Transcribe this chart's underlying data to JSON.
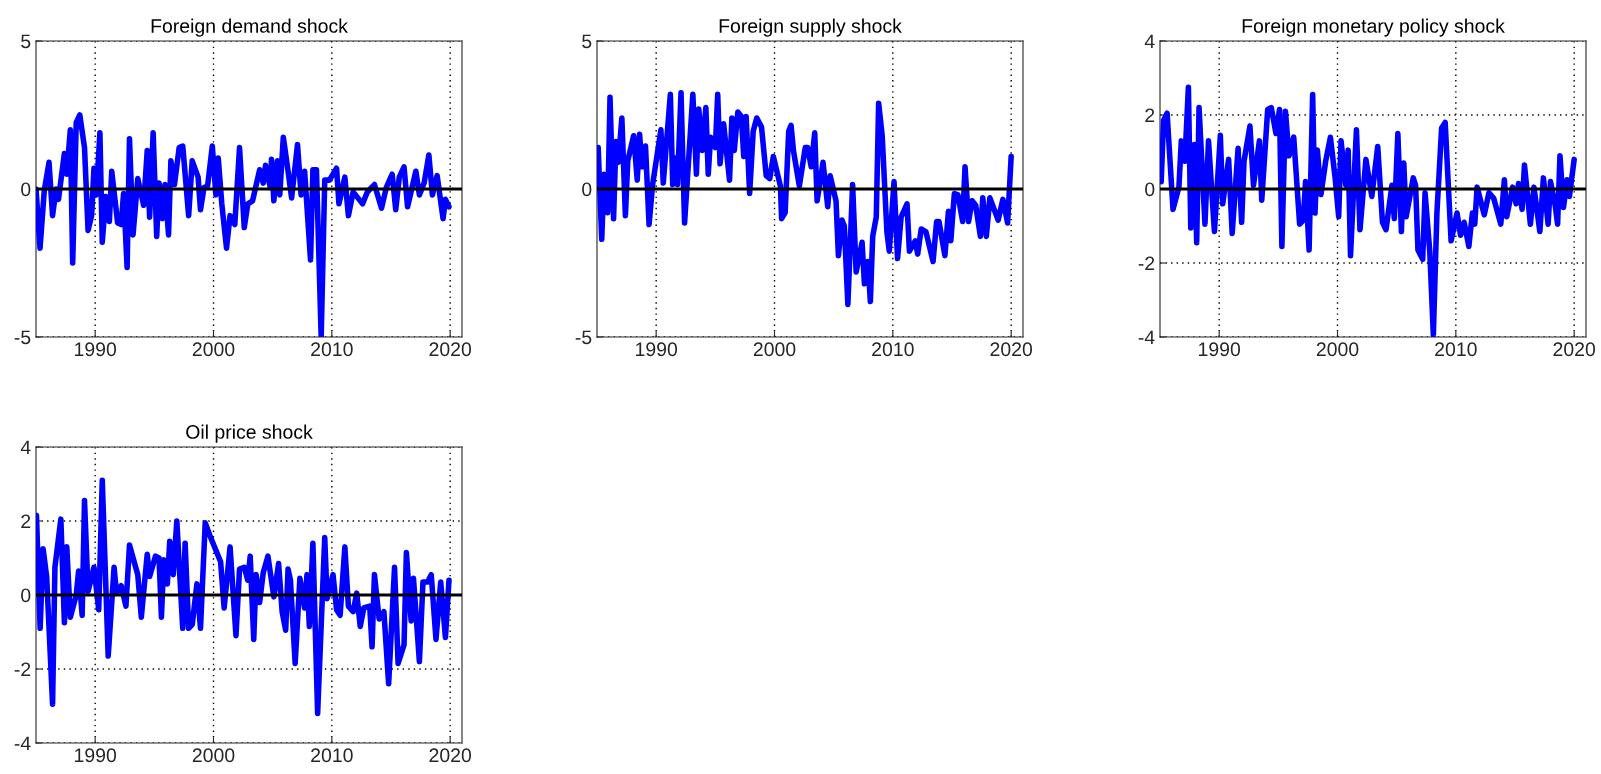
{
  "chart_data": [
    {
      "type": "line",
      "title": "Foreign demand shock",
      "xlim": [
        1985,
        2021
      ],
      "xticks": [
        1990,
        2000,
        2010,
        2020
      ],
      "ylim": [
        -5,
        5
      ],
      "yticks": [
        -5,
        0,
        5
      ],
      "grid": true,
      "ref_lines": [
        {
          "axis": "y",
          "value": 0,
          "color": "#000000"
        }
      ],
      "x": [
        1985.0,
        1985.34,
        1985.7,
        1986.1,
        1986.4,
        1986.7,
        1986.9,
        1987.4,
        1987.6,
        1987.9,
        1988.1,
        1988.4,
        1988.7,
        1989.1,
        1989.4,
        1989.7,
        1989.9,
        1990.1,
        1990.4,
        1990.6,
        1990.9,
        1991.2,
        1991.4,
        1991.9,
        1992.2,
        1992.4,
        1992.7,
        1992.9,
        1993.2,
        1993.6,
        1994.1,
        1994.4,
        1994.6,
        1994.9,
        1995.2,
        1995.4,
        1995.7,
        1995.9,
        1996.2,
        1996.4,
        1996.7,
        1997.1,
        1997.4,
        1997.9,
        1998.2,
        1998.7,
        1998.9,
        1999.2,
        1999.5,
        1999.9,
        2000.2,
        2000.4,
        2000.7,
        2001.1,
        2001.4,
        2001.8,
        2002.2,
        2002.6,
        2002.9,
        2003.3,
        2003.9,
        2004.2,
        2004.4,
        2004.8,
        2004.9,
        2005.1,
        2005.4,
        2005.6,
        2005.9,
        2006.3,
        2006.6,
        2007.1,
        2007.4,
        2007.7,
        2008.2,
        2008.4,
        2008.7,
        2009.1,
        2009.4,
        2009.8,
        2010.4,
        2010.6,
        2011.1,
        2011.4,
        2011.8,
        2012.2,
        2012.6,
        2013.0,
        2013.6,
        2014.2,
        2014.6,
        2015.1,
        2015.4,
        2015.7,
        2016.1,
        2016.4,
        2017.1,
        2017.4,
        2017.8,
        2018.2,
        2018.5,
        2018.9,
        2019.4,
        2019.6,
        2019.9
      ],
      "series": [
        {
          "color": "#0000ff",
          "values": [
            0,
            -2.0,
            -0.05,
            0.9,
            -0.9,
            0,
            -0.35,
            1.2,
            0.5,
            2.0,
            -2.5,
            2.25,
            2.5,
            1.4,
            -1.4,
            -0.9,
            0.7,
            -0.2,
            1.9,
            -1.8,
            -0.25,
            -1.1,
            0.6,
            -1.15,
            -1.2,
            -0.15,
            -2.65,
            1.7,
            -1.55,
            0.35,
            -0.55,
            1.3,
            -0.95,
            1.9,
            -1.6,
            0.2,
            -1.0,
            0.15,
            -1.55,
            0.95,
            0.15,
            1.4,
            1.45,
            -0.9,
            0.95,
            0.4,
            -0.7,
            0.05,
            0.1,
            1.45,
            -0.2,
            1.05,
            -0.5,
            -2.0,
            -0.9,
            -1.2,
            1.4,
            -1.3,
            -0.5,
            -0.4,
            0.65,
            0.2,
            0.8,
            0.05,
            1.0,
            -0.4,
            0.95,
            -0.2,
            1.75,
            0.6,
            -0.3,
            1.5,
            -0.2,
            0.6,
            -2.4,
            0.65,
            0.65,
            -5.0,
            0.3,
            0.3,
            0.7,
            -0.5,
            0.4,
            -0.9,
            -0.1,
            -0.3,
            -0.5,
            -0.1,
            0.15,
            -0.65,
            0.05,
            0.5,
            -0.7,
            0.4,
            0.75,
            -0.6,
            0.6,
            -0.2,
            0.2,
            1.15,
            -0.2,
            0.45,
            -1.0,
            -0.35,
            -0.6
          ]
        }
      ]
    },
    {
      "type": "line",
      "title": "Foreign supply shock",
      "xlim": [
        1985,
        2021
      ],
      "xticks": [
        1990,
        2000,
        2010,
        2020
      ],
      "ylim": [
        -5,
        5
      ],
      "yticks": [
        -5,
        0,
        5
      ],
      "grid": true,
      "ref_lines": [
        {
          "axis": "y",
          "value": 0,
          "color": "#000000"
        }
      ],
      "x": [
        1985.1,
        1985.4,
        1985.6,
        1985.9,
        1986.1,
        1986.4,
        1986.6,
        1986.8,
        1987.1,
        1987.4,
        1987.6,
        1988.1,
        1988.4,
        1988.6,
        1988.8,
        1989.1,
        1989.4,
        1989.7,
        1990.4,
        1990.6,
        1991.2,
        1991.4,
        1991.6,
        1991.8,
        1992.1,
        1992.4,
        1993.1,
        1993.4,
        1993.6,
        1993.9,
        1994.2,
        1994.4,
        1994.6,
        1995.0,
        1995.2,
        1995.4,
        1995.7,
        1996.2,
        1996.4,
        1996.6,
        1996.9,
        1997.2,
        1997.4,
        1997.6,
        1997.9,
        1998.2,
        1998.5,
        1998.9,
        1999.3,
        1999.6,
        1999.9,
        2000.5,
        2000.6,
        2000.9,
        2001.2,
        2001.4,
        2001.6,
        2002.1,
        2002.6,
        2002.8,
        2003.1,
        2003.4,
        2003.6,
        2004.1,
        2004.5,
        2004.7,
        2005.2,
        2005.4,
        2005.7,
        2005.9,
        2006.2,
        2006.6,
        2006.9,
        2007.4,
        2007.6,
        2007.9,
        2008.1,
        2008.3,
        2008.6,
        2008.8,
        2009.1,
        2009.5,
        2009.7,
        2010.1,
        2010.4,
        2010.7,
        2011.2,
        2011.4,
        2011.9,
        2012.1,
        2012.4,
        2012.8,
        2013.4,
        2013.7,
        2013.9,
        2014.4,
        2014.7,
        2014.9,
        2015.2,
        2015.5,
        2015.9,
        2016.1,
        2016.4,
        2016.7,
        2017.0,
        2017.4,
        2017.6,
        2017.9,
        2018.2,
        2018.9,
        2019.3,
        2019.7,
        2020.0
      ],
      "series": [
        {
          "color": "#0000ff",
          "values": [
            1.4,
            -1.7,
            0.5,
            -0.8,
            3.1,
            -1.0,
            1.6,
            0.9,
            2.4,
            -0.9,
            0.95,
            1.8,
            0.3,
            1.85,
            0.75,
            1.45,
            -1.2,
            0.15,
            2.0,
            0.2,
            3.2,
            0.15,
            1.05,
            0.15,
            3.25,
            -1.15,
            3.2,
            0.5,
            2.7,
            1.3,
            2.75,
            0.5,
            1.75,
            1.4,
            3.2,
            0.85,
            2.2,
            0.3,
            2.4,
            1.3,
            2.6,
            2.45,
            1.1,
            2.45,
            -0.15,
            1.95,
            2.4,
            2.1,
            0.45,
            0.35,
            1.1,
            0.1,
            -1.0,
            -0.8,
            1.95,
            2.15,
            1.3,
            0.1,
            1.4,
            1.4,
            0.75,
            1.9,
            -0.4,
            0.9,
            -0.6,
            0.45,
            -0.4,
            -2.25,
            -1.05,
            -1.25,
            -3.9,
            0.15,
            -2.8,
            -1.8,
            -3.2,
            -2.45,
            -3.8,
            -1.6,
            -0.95,
            2.9,
            1.8,
            -1.45,
            -2.1,
            0.25,
            -2.35,
            -0.95,
            -0.5,
            -2.1,
            -1.75,
            -2.2,
            -1.35,
            -1.45,
            -2.45,
            -1.1,
            -1.1,
            -2.25,
            -0.75,
            -1.75,
            -0.15,
            -0.2,
            -1.1,
            0.75,
            -1.1,
            -0.4,
            -0.55,
            -1.6,
            -0.3,
            -1.6,
            -0.3,
            -1.05,
            -0.35,
            -1.15,
            1.1
          ]
        }
      ]
    },
    {
      "type": "line",
      "title": "Foreign monetary policy shock",
      "xlim": [
        1985,
        2021
      ],
      "xticks": [
        1990,
        2000,
        2010,
        2020
      ],
      "ylim": [
        -4,
        4
      ],
      "yticks": [
        -4,
        -2,
        0,
        2,
        4
      ],
      "grid": true,
      "ref_lines": [
        {
          "axis": "y",
          "value": 0,
          "color": "#000000"
        }
      ],
      "x": [
        1985.1,
        1985.3,
        1985.6,
        1986.1,
        1986.6,
        1986.8,
        1987.1,
        1987.4,
        1987.6,
        1987.9,
        1988.1,
        1988.3,
        1988.8,
        1989.1,
        1989.6,
        1990.1,
        1990.3,
        1990.8,
        1991.1,
        1991.6,
        1991.9,
        1992.1,
        1992.6,
        1992.9,
        1993.4,
        1993.6,
        1994.1,
        1994.4,
        1994.8,
        1995.1,
        1995.3,
        1995.6,
        1995.9,
        1996.3,
        1996.8,
        1997.1,
        1997.3,
        1997.6,
        1997.9,
        1998.1,
        1998.3,
        1998.6,
        1999.0,
        1999.4,
        1999.8,
        2000.1,
        2000.3,
        2000.7,
        2000.9,
        2001.1,
        2001.6,
        2001.9,
        2002.4,
        2002.9,
        2003.4,
        2003.8,
        2004.1,
        2004.6,
        2004.8,
        2005.1,
        2005.4,
        2005.6,
        2005.8,
        2006.4,
        2006.6,
        2006.8,
        2007.2,
        2007.4,
        2007.8,
        2008.1,
        2008.4,
        2008.8,
        2009.1,
        2009.6,
        2010.1,
        2010.4,
        2010.7,
        2011.1,
        2011.4,
        2011.6,
        2011.8,
        2012.4,
        2012.8,
        2013.2,
        2013.8,
        2014.1,
        2014.3,
        2014.8,
        2015.1,
        2015.3,
        2015.6,
        2015.8,
        2016.3,
        2016.6,
        2017.1,
        2017.4,
        2017.8,
        2018.0,
        2018.4,
        2018.6,
        2018.8,
        2019.1,
        2019.4,
        2019.6,
        2020.0
      ],
      "series": [
        {
          "color": "#0000ff",
          "values": [
            0.2,
            1.85,
            2.05,
            -0.55,
            0.05,
            1.3,
            0.75,
            2.75,
            -1.05,
            1.2,
            -1.45,
            2.2,
            -0.95,
            1.3,
            -1.15,
            1.45,
            -0.4,
            0.8,
            -1.2,
            1.1,
            -0.9,
            0.75,
            1.7,
            0.1,
            1.3,
            -0.3,
            2.15,
            2.2,
            1.5,
            2.15,
            -1.55,
            2.1,
            0.9,
            1.4,
            -0.95,
            -0.85,
            0.2,
            -1.65,
            2.55,
            -0.65,
            1.05,
            -0.15,
            0.75,
            1.4,
            0.3,
            -0.75,
            1.3,
            0.1,
            1.05,
            -1.8,
            1.6,
            -1.1,
            0.8,
            -0.2,
            1.15,
            -0.9,
            -1.1,
            0.1,
            -0.8,
            1.5,
            -1.15,
            0.7,
            -0.75,
            0.3,
            0.1,
            -1.65,
            -1.9,
            -0.1,
            -1.7,
            -3.95,
            -0.65,
            1.65,
            1.8,
            -1.4,
            -0.65,
            -1.25,
            -0.9,
            -1.55,
            -0.65,
            -0.95,
            0.05,
            -0.7,
            -0.1,
            -0.25,
            -0.95,
            0.25,
            -0.75,
            0.05,
            -0.4,
            0.15,
            -0.55,
            0.65,
            -0.95,
            0.05,
            -1.15,
            0.3,
            -0.95,
            0.2,
            -0.45,
            -0.95,
            0.9,
            -0.5,
            0.25,
            -0.2,
            0.8
          ]
        }
      ]
    },
    {
      "type": "line",
      "title": "Oil price shock",
      "xlim": [
        1985,
        2021
      ],
      "xticks": [
        1990,
        2000,
        2010,
        2020
      ],
      "ylim": [
        -4,
        4
      ],
      "yticks": [
        -4,
        -2,
        0,
        2,
        4
      ],
      "grid": true,
      "ref_lines": [
        {
          "axis": "y",
          "value": 0,
          "color": "#000000"
        }
      ],
      "x": [
        1985.04,
        1985.35,
        1985.6,
        1985.9,
        1986.4,
        1986.6,
        1987.1,
        1987.4,
        1987.6,
        1987.9,
        1988.4,
        1988.6,
        1988.9,
        1989.1,
        1989.4,
        1989.9,
        1990.3,
        1990.6,
        1991.1,
        1991.6,
        1991.8,
        1992.2,
        1992.6,
        1992.9,
        1993.6,
        1993.9,
        1994.4,
        1994.6,
        1995.1,
        1995.4,
        1995.6,
        1995.8,
        1996.1,
        1996.3,
        1996.6,
        1996.9,
        1997.4,
        1997.6,
        1997.9,
        1998.2,
        1998.6,
        1998.9,
        1999.3,
        1999.7,
        2000.6,
        2000.9,
        2001.4,
        2001.9,
        2002.2,
        2002.6,
        2002.9,
        2003.1,
        2003.4,
        2003.6,
        2003.9,
        2004.2,
        2004.6,
        2005.1,
        2005.5,
        2005.8,
        2006.1,
        2006.3,
        2006.5,
        2006.9,
        2007.3,
        2007.7,
        2007.9,
        2008.1,
        2008.4,
        2008.8,
        2009.4,
        2009.6,
        2010.1,
        2010.4,
        2010.7,
        2011.1,
        2011.4,
        2011.8,
        2012.1,
        2012.4,
        2012.7,
        2013.2,
        2013.4,
        2013.6,
        2014.0,
        2014.4,
        2014.8,
        2015.3,
        2015.6,
        2016.1,
        2016.3,
        2016.7,
        2016.9,
        2017.4,
        2017.7,
        2018.1,
        2018.4,
        2018.8,
        2019.2,
        2019.6,
        2019.9
      ],
      "series": [
        {
          "color": "#0000ff",
          "values": [
            2.15,
            -0.9,
            1.25,
            0.5,
            -2.95,
            0.75,
            2.05,
            -0.75,
            1.3,
            -0.6,
            0.0,
            0.65,
            -0.55,
            2.55,
            0.1,
            0.75,
            -0.4,
            3.1,
            -1.65,
            0.75,
            0.05,
            0.25,
            -0.3,
            1.35,
            0.55,
            -0.6,
            1.1,
            0.5,
            1.05,
            1.0,
            -0.6,
            0.95,
            0.3,
            1.45,
            0.55,
            2.0,
            -0.9,
            1.4,
            -0.9,
            -0.8,
            0.3,
            -0.9,
            1.95,
            1.6,
            0.9,
            -0.35,
            1.3,
            -1.1,
            0.7,
            0.75,
            0.4,
            1.05,
            -1.2,
            0.55,
            -0.2,
            0.6,
            1.05,
            -0.05,
            0.85,
            -0.45,
            -0.95,
            0.7,
            0.4,
            -1.85,
            0.45,
            -0.35,
            0.55,
            -0.85,
            1.4,
            -3.2,
            1.55,
            -0.1,
            0.55,
            -0.4,
            -0.55,
            1.3,
            -0.3,
            -0.45,
            0.05,
            -0.85,
            -0.35,
            -0.3,
            -1.4,
            0.55,
            -0.65,
            -0.45,
            -2.4,
            0.75,
            -1.85,
            -1.35,
            1.15,
            -0.7,
            0.45,
            -1.8,
            0.35,
            0.35,
            0.55,
            -1.2,
            0.35,
            -1.15,
            0.4
          ]
        }
      ]
    }
  ]
}
